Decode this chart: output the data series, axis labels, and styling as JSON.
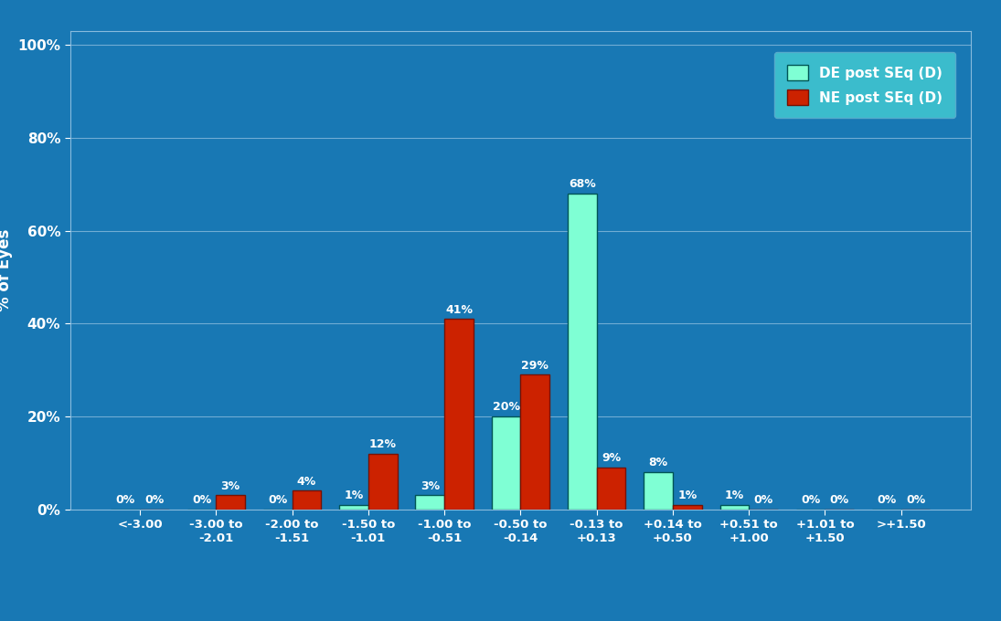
{
  "categories": [
    "<-3.00",
    "-3.00 to\n-2.01",
    "-2.00 to\n-1.51",
    "-1.50 to\n-1.01",
    "-1.00 to\n-0.51",
    "-0.50 to\n-0.14",
    "-0.13 to\n+0.13",
    "+0.14 to\n+0.50",
    "+0.51 to\n+1.00",
    "+1.01 to\n+1.50",
    ">+1.50"
  ],
  "de_values": [
    0,
    0,
    0,
    1,
    3,
    20,
    68,
    8,
    1,
    0,
    0
  ],
  "ne_values": [
    0,
    3,
    4,
    12,
    41,
    29,
    9,
    1,
    0,
    0,
    0
  ],
  "de_color": "#7FFFD4",
  "ne_color": "#CC2200",
  "background_color": "#1878B4",
  "plot_bg_color": "#1878B4",
  "grid_color": "#88BBDD",
  "ylabel": "% of Eyes",
  "ylim": [
    0,
    100
  ],
  "yticks": [
    0,
    20,
    40,
    60,
    80,
    100
  ],
  "ytick_labels": [
    "0%",
    "20%",
    "40%",
    "60%",
    "80%",
    "100%"
  ],
  "legend_label_de": "DE post SEq (D)",
  "legend_label_ne": "NE post SEq (D)",
  "legend_bg": "#3BBCCC",
  "bar_width": 0.38,
  "text_color": "#FFFFFF",
  "axis_label_color": "#FFFFFF",
  "tick_color": "#FFFFFF",
  "label_fontsize": 9.0,
  "ylabel_fontsize": 12,
  "ytick_fontsize": 11,
  "xtick_fontsize": 9.5,
  "legend_fontsize": 11
}
